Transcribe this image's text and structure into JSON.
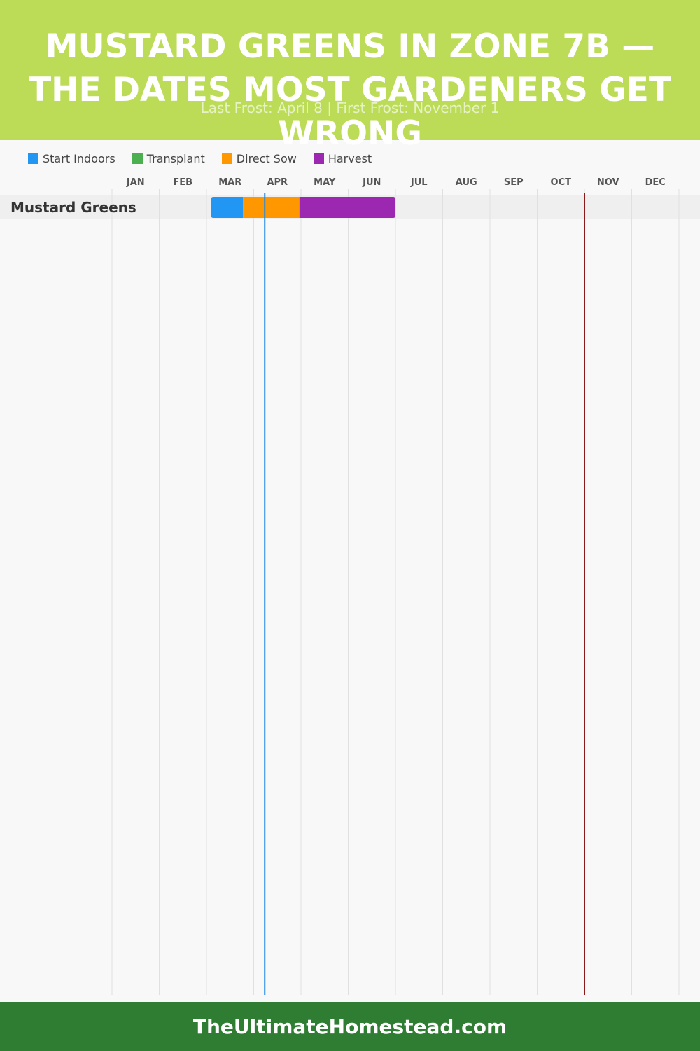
{
  "header": {
    "title": "MUSTARD GREENS IN ZONE 7B — THE DATES MOST GARDENERS GET WRONG",
    "subtitle": "Last Frost: April 8 | First Frost: November 1",
    "background_color": "#bcdc57"
  },
  "footer": {
    "text": "TheUltimateHomestead.com",
    "background_color": "#2e7d32"
  },
  "chart_data": {
    "type": "gantt",
    "months": [
      "JAN",
      "FEB",
      "MAR",
      "APR",
      "MAY",
      "JUN",
      "JUL",
      "AUG",
      "SEP",
      "OCT",
      "NOV",
      "DEC"
    ],
    "legend": [
      {
        "label": "Start Indoors",
        "color": "#2196f3"
      },
      {
        "label": "Transplant",
        "color": "#4caf50"
      },
      {
        "label": "Direct Sow",
        "color": "#ff9800"
      },
      {
        "label": "Harvest",
        "color": "#9c27b0"
      }
    ],
    "rows": [
      {
        "label": "Mustard Greens",
        "segments": [
          {
            "phase": "Start Indoors",
            "start": "03-04",
            "end": "03-25",
            "color": "#2196f3"
          },
          {
            "phase": "Direct Sow",
            "start": "03-25",
            "end": "04-30",
            "color": "#ff9800"
          },
          {
            "phase": "Harvest",
            "start": "04-30",
            "end": "07-01",
            "color": "#9c27b0"
          }
        ]
      }
    ],
    "markers": [
      {
        "name": "Last Frost",
        "date": "04-08",
        "color": "#1e88e5"
      },
      {
        "name": "First Frost",
        "date": "11-01",
        "color": "#8b1a1a"
      }
    ]
  }
}
